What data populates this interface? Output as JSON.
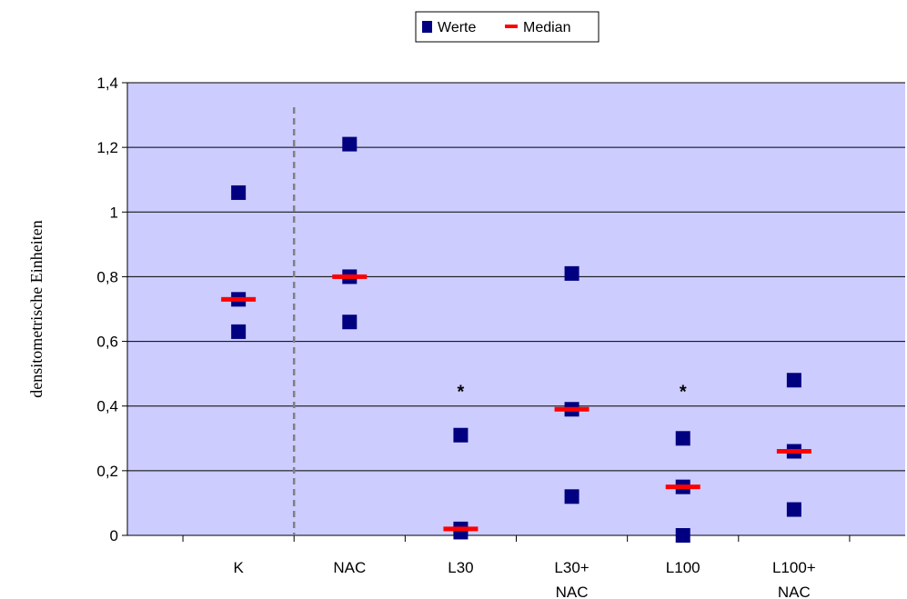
{
  "chart_data": {
    "type": "scatter",
    "categories": [
      [
        "K"
      ],
      [
        "NAC"
      ],
      [
        "L30"
      ],
      [
        "L30+",
        "NAC"
      ],
      [
        "L100"
      ],
      [
        "L100+",
        "NAC"
      ]
    ],
    "series": [
      {
        "name": "Werte",
        "marker": "square",
        "color": "#000080",
        "points": [
          [
            1.06,
            0.73,
            0.63
          ],
          [
            1.21,
            0.8,
            0.66
          ],
          [
            0.31,
            0.02,
            0.01
          ],
          [
            0.81,
            0.39,
            0.12
          ],
          [
            0.3,
            0.15,
            0.0
          ],
          [
            0.48,
            0.26,
            0.08
          ]
        ]
      },
      {
        "name": "Median",
        "marker": "dash",
        "color": "#ff0000",
        "values": [
          0.73,
          0.8,
          0.02,
          0.39,
          0.15,
          0.26
        ]
      }
    ],
    "annotations": [
      {
        "category_index": 2,
        "text": "*",
        "y": 0.46
      },
      {
        "category_index": 4,
        "text": "*",
        "y": 0.46
      }
    ],
    "separator_after_category": 0,
    "ylabel": "densitometrische Einheiten",
    "xlabel": "",
    "ylim": [
      0,
      1.4
    ],
    "yticks": [
      {
        "value": 0,
        "label": "0"
      },
      {
        "value": 0.2,
        "label": "0,2"
      },
      {
        "value": 0.4,
        "label": "0,4"
      },
      {
        "value": 0.6,
        "label": "0,6"
      },
      {
        "value": 0.8,
        "label": "0,8"
      },
      {
        "value": 1.0,
        "label": "1"
      },
      {
        "value": 1.2,
        "label": "1,2"
      },
      {
        "value": 1.4,
        "label": "1,4"
      }
    ],
    "grid": true,
    "legend": "top-center",
    "colors": {
      "plot_background": "#ccccff",
      "gridline": "#000000",
      "separator": "#808080"
    }
  }
}
